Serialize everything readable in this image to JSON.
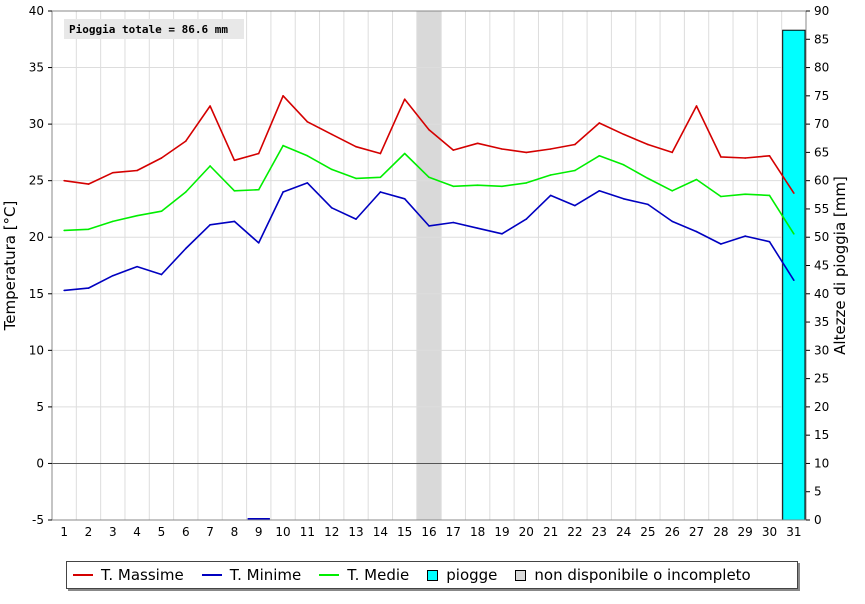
{
  "chart_data": {
    "type": "line",
    "annotation": "Pioggia totale = 86.6 mm",
    "ylabel": "Temperatura [°C]",
    "y2label": "Altezze di pioggia [mm]",
    "ylim": [
      -5,
      40
    ],
    "y2lim": [
      0,
      90
    ],
    "x": [
      1,
      2,
      3,
      4,
      5,
      6,
      7,
      8,
      9,
      10,
      11,
      12,
      13,
      14,
      15,
      16,
      17,
      18,
      19,
      20,
      21,
      22,
      23,
      24,
      25,
      26,
      27,
      28,
      29,
      30,
      31
    ],
    "series": [
      {
        "name": "T. Massime",
        "color": "#d40000",
        "values": [
          25.0,
          24.7,
          25.7,
          25.9,
          27.0,
          28.5,
          31.6,
          26.8,
          27.4,
          32.5,
          30.2,
          29.1,
          28.0,
          27.4,
          32.2,
          29.5,
          27.7,
          28.3,
          27.8,
          27.5,
          27.8,
          28.2,
          30.1,
          29.1,
          28.2,
          27.5,
          31.6,
          27.1,
          27.0,
          27.2,
          23.9
        ]
      },
      {
        "name": "T. Minime",
        "color": "#0000c0",
        "values": [
          15.3,
          15.5,
          16.6,
          17.4,
          16.7,
          19.0,
          21.1,
          21.4,
          19.5,
          24.0,
          24.8,
          22.6,
          21.6,
          24.0,
          23.4,
          21.0,
          21.3,
          20.8,
          20.3,
          21.6,
          23.7,
          22.8,
          24.1,
          23.4,
          22.9,
          21.4,
          20.5,
          19.4,
          20.1,
          19.6,
          16.2
        ]
      },
      {
        "name": "T. Medie",
        "color": "#00ee00",
        "values": [
          20.6,
          20.7,
          21.4,
          21.9,
          22.3,
          24.0,
          26.3,
          24.1,
          24.2,
          28.1,
          27.2,
          26.0,
          25.2,
          25.3,
          27.4,
          25.3,
          24.5,
          24.6,
          24.5,
          24.8,
          25.5,
          25.9,
          27.2,
          26.4,
          25.2,
          24.1,
          25.1,
          23.6,
          23.8,
          23.7,
          20.3
        ]
      }
    ],
    "rain": {
      "name": "piogge",
      "color": "#00ffff",
      "values_mm": [
        0,
        0,
        0,
        0,
        0,
        0,
        0,
        0,
        0,
        0,
        0,
        0,
        0,
        0,
        0,
        0,
        0,
        0,
        0,
        0,
        0,
        0,
        0,
        0,
        0,
        0,
        0,
        0,
        0,
        0,
        86.6
      ]
    },
    "missing": {
      "name": "non disponibile o incompleto",
      "color": "#d9d9d9",
      "days": [
        16
      ]
    },
    "y_ticks": [
      -5,
      0,
      5,
      10,
      15,
      20,
      25,
      30,
      35,
      40
    ],
    "y2_ticks": [
      0,
      5,
      10,
      15,
      20,
      25,
      30,
      35,
      40,
      45,
      50,
      55,
      60,
      65,
      70,
      75,
      80,
      85,
      90
    ],
    "grid": true,
    "legend_position": "bottom"
  },
  "legend": {
    "items": [
      {
        "label": "T. Massime",
        "color": "#d40000",
        "kind": "line"
      },
      {
        "label": "T. Minime",
        "color": "#0000c0",
        "kind": "line"
      },
      {
        "label": "T. Medie",
        "color": "#00ee00",
        "kind": "line"
      },
      {
        "label": "piogge",
        "color": "#00ffff",
        "kind": "box"
      },
      {
        "label": "non disponibile o incompleto",
        "color": "#d9d9d9",
        "kind": "box"
      }
    ]
  }
}
